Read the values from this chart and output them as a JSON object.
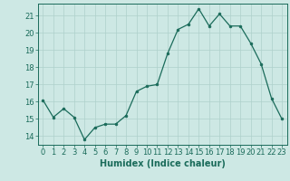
{
  "x": [
    0,
    1,
    2,
    3,
    4,
    5,
    6,
    7,
    8,
    9,
    10,
    11,
    12,
    13,
    14,
    15,
    16,
    17,
    18,
    19,
    20,
    21,
    22,
    23
  ],
  "y": [
    16.1,
    15.1,
    15.6,
    15.1,
    13.8,
    14.5,
    14.7,
    14.7,
    15.2,
    16.6,
    16.9,
    17.0,
    18.8,
    20.2,
    20.5,
    21.4,
    20.4,
    21.1,
    20.4,
    20.4,
    19.4,
    18.2,
    16.2,
    15.0
  ],
  "line_color": "#1a6b5a",
  "marker_color": "#1a6b5a",
  "bg_color": "#cde8e4",
  "grid_color": "#aed0cb",
  "xlabel": "Humidex (Indice chaleur)",
  "xlim": [
    -0.5,
    23.5
  ],
  "ylim": [
    13.5,
    21.7
  ],
  "yticks": [
    14,
    15,
    16,
    17,
    18,
    19,
    20,
    21
  ],
  "xticks": [
    0,
    1,
    2,
    3,
    4,
    5,
    6,
    7,
    8,
    9,
    10,
    11,
    12,
    13,
    14,
    15,
    16,
    17,
    18,
    19,
    20,
    21,
    22,
    23
  ],
  "tick_color": "#1a6b5a",
  "label_fontsize": 7.0,
  "tick_fontsize": 6.0
}
